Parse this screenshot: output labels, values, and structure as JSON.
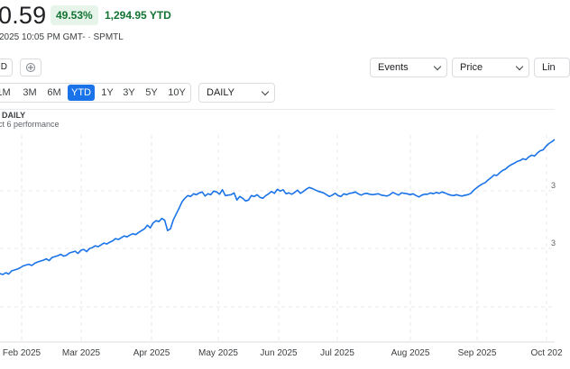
{
  "quote": {
    "price": "0.59",
    "pct_change": "49.53%",
    "abs_change": "1,294.95 YTD",
    "timestamp": "2025 10:05 PM GMT- · SPMTL",
    "color_up": "#137333",
    "badge_bg": "#e6f4ea"
  },
  "toolbar": {
    "left_button_label": "D",
    "add_icon": "plus-circle-icon",
    "events_label": "Events",
    "price_label": "Price",
    "chart_type_label": "Lin"
  },
  "ranges": {
    "items": [
      "1M",
      "3M",
      "6M",
      "YTD",
      "1Y",
      "3Y",
      "5Y",
      "10Y"
    ],
    "active": "YTD",
    "accent": "#1a73e8"
  },
  "interval": {
    "selected": "DAILY"
  },
  "chart_header": {
    "label": "DAILY",
    "subtitle": "ct 6 performance"
  },
  "chart_data": {
    "type": "line",
    "x_tick_labels": [
      "Feb 2025",
      "Mar 2025",
      "Apr 2025",
      "May 2025",
      "Jun 2025",
      "Jul 2025",
      "Aug 2025",
      "Sep 2025",
      "Oct 202"
    ],
    "y_tick_labels": [
      "3",
      "3"
    ],
    "grid": true,
    "line_color": "#1a73e8",
    "series": [
      {
        "values": [
          12,
          10,
          14,
          11,
          18,
          20,
          22,
          25,
          29,
          31,
          33,
          30,
          35,
          38,
          40,
          42,
          45,
          41,
          48,
          50,
          52,
          55,
          51,
          53,
          58,
          60,
          62,
          57,
          64,
          66,
          61,
          68,
          70,
          74,
          72,
          76,
          80,
          78,
          82,
          85,
          90,
          88,
          92,
          96,
          94,
          98,
          101,
          99,
          104,
          108,
          112,
          120,
          114,
          125,
          130,
          128,
          135,
          131,
          108,
          112,
          132,
          145,
          158,
          172,
          180,
          186,
          184,
          190,
          188,
          192,
          194,
          185,
          190,
          188,
          196,
          194,
          189,
          199,
          186,
          187,
          188,
          192,
          176,
          184,
          180,
          174,
          176,
          186,
          184,
          188,
          182,
          180,
          186,
          190,
          195,
          191,
          200,
          196,
          199,
          190,
          192,
          189,
          193,
          198,
          191,
          195,
          200,
          204,
          202,
          199,
          196,
          194,
          192,
          188,
          184,
          187,
          191,
          186,
          184,
          190,
          188,
          191,
          192,
          194,
          190,
          187,
          190,
          191,
          189,
          188,
          189,
          190,
          187,
          186,
          185,
          188,
          193,
          190,
          187,
          192,
          191,
          190,
          188,
          190,
          186,
          183,
          187,
          189,
          189,
          192,
          190,
          193,
          191,
          194,
          192,
          189,
          187,
          186,
          188,
          186,
          185,
          187,
          188,
          191,
          198,
          203,
          208,
          212,
          215,
          221,
          226,
          232,
          231,
          237,
          242,
          245,
          251,
          255,
          258,
          262,
          264,
          268,
          266,
          272,
          276,
          274,
          281,
          286,
          288,
          296,
          302,
          306,
          311
        ]
      }
    ]
  }
}
